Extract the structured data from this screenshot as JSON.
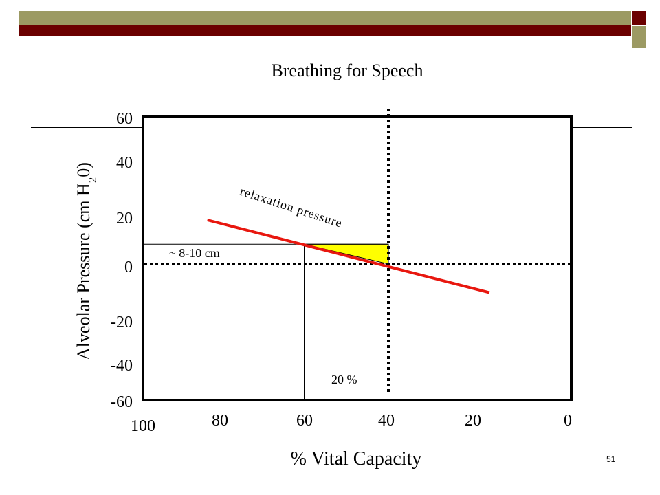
{
  "slide": {
    "title": "Breathing for Speech",
    "page_number": "51",
    "colors": {
      "olive": "#9c9a63",
      "maroon": "#6b0000"
    }
  },
  "chart_data": {
    "type": "line",
    "xlabel": "% Vital Capacity",
    "ylabel_main": "Alveolar Pressure (cm H",
    "ylabel_sub1": "2",
    "ylabel_mid": "0",
    "ylabel_end": ")",
    "xlim": [
      100,
      0
    ],
    "ylim": [
      -60,
      60
    ],
    "x_ticks": [
      100,
      80,
      60,
      40,
      20,
      0
    ],
    "y_ticks": [
      60,
      40,
      20,
      0,
      -20,
      -40,
      -60
    ],
    "series": [
      {
        "name": "relaxation pressure",
        "color": "#e8170f",
        "x": [
          83,
          16
        ],
        "y": [
          20,
          -13
        ]
      }
    ],
    "reference_lines": {
      "vertical_dotted_x": 40,
      "horizontal_dotted_y": 0,
      "vertical_thin_x": 60,
      "horizontal_thin_y": 9
    },
    "annotations": {
      "curve_label": "relaxation pressure",
      "pressure_label": "~ 8-10 cm",
      "capacity_label": "20 %",
      "highlight_color": "#ffff00"
    }
  }
}
